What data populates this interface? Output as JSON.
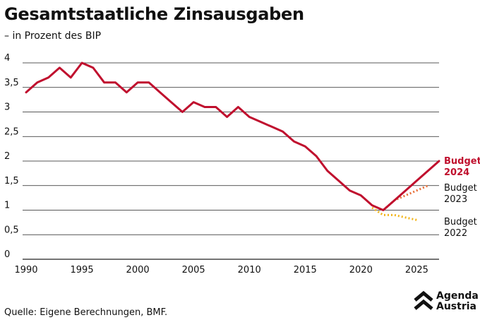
{
  "title": "Gesamtstaatliche Zinsausgaben",
  "subtitle": "– in Prozent des BIP",
  "source": "Quelle: Eigene Berechnungen, BMF.",
  "logo": {
    "line1": "Agenda",
    "line2": "Austria"
  },
  "colors": {
    "budget2024": "#c0102e",
    "budget2023": "#e8703a",
    "budget2022": "#f2b51c",
    "grid": "#222222"
  },
  "chart_data": {
    "type": "line",
    "xlim": [
      1990,
      2027
    ],
    "ylim": [
      0,
      4
    ],
    "xticks": [
      1990,
      1995,
      2000,
      2005,
      2010,
      2015,
      2020,
      2025
    ],
    "xtick_labels": [
      "1990",
      "1995",
      "2000",
      "2005",
      "2010",
      "2015",
      "2020",
      "2025"
    ],
    "yticks": [
      0,
      0.5,
      1,
      1.5,
      2,
      2.5,
      3,
      3.5,
      4
    ],
    "ytick_labels": [
      "0",
      "0,5",
      "1",
      "1,5",
      "2",
      "2,5",
      "3",
      "3,5",
      "4"
    ],
    "grid": true,
    "legend_position": "right-inline",
    "series": [
      {
        "name": "Budget 2024",
        "style": "solid",
        "color": "#c0102e",
        "x": [
          1990,
          1991,
          1992,
          1993,
          1994,
          1995,
          1996,
          1997,
          1998,
          1999,
          2000,
          2001,
          2002,
          2003,
          2004,
          2005,
          2006,
          2007,
          2008,
          2009,
          2010,
          2011,
          2012,
          2013,
          2014,
          2015,
          2016,
          2017,
          2018,
          2019,
          2020,
          2021,
          2022,
          2023,
          2024,
          2025,
          2026,
          2027
        ],
        "y": [
          3.4,
          3.6,
          3.7,
          3.9,
          3.7,
          4.0,
          3.9,
          3.6,
          3.6,
          3.4,
          3.6,
          3.6,
          3.4,
          3.2,
          3.0,
          3.2,
          3.1,
          3.1,
          2.9,
          3.1,
          2.9,
          2.8,
          2.7,
          2.6,
          2.4,
          2.3,
          2.1,
          1.8,
          1.6,
          1.4,
          1.3,
          1.1,
          1.0,
          1.2,
          1.4,
          1.6,
          1.8,
          2.0
        ]
      },
      {
        "name": "Budget 2023",
        "style": "dotted",
        "color": "#e8703a",
        "x": [
          2022,
          2023,
          2024,
          2025,
          2026
        ],
        "y": [
          1.0,
          1.2,
          1.3,
          1.4,
          1.5
        ]
      },
      {
        "name": "Budget 2022",
        "style": "dotted",
        "color": "#f2b51c",
        "x": [
          2021,
          2022,
          2023,
          2024,
          2025
        ],
        "y": [
          1.05,
          0.9,
          0.9,
          0.85,
          0.8
        ]
      }
    ],
    "legend": [
      {
        "line1": "Budget",
        "line2": "2024",
        "color": "#c0102e",
        "bold": true
      },
      {
        "line1": "Budget",
        "line2": "2023",
        "color": "#111111",
        "bold": false
      },
      {
        "line1": "Budget",
        "line2": "2022",
        "color": "#111111",
        "bold": false
      }
    ]
  }
}
